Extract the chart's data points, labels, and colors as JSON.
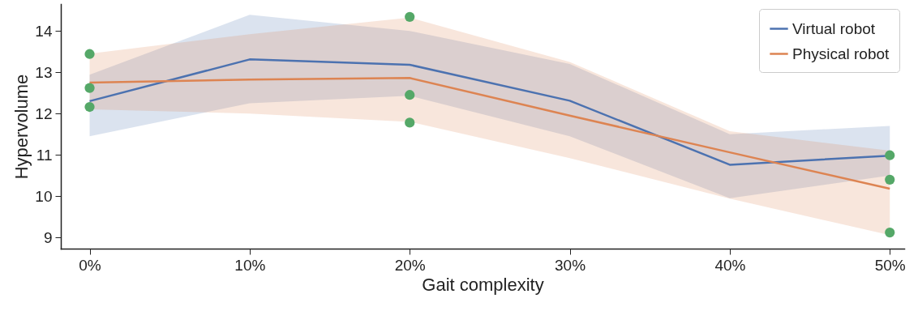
{
  "chart_data": {
    "type": "line",
    "xlabel": "Gait complexity",
    "ylabel": "Hypervolume",
    "x": [
      0,
      10,
      20,
      30,
      40,
      50
    ],
    "xlim": [
      -1.8,
      50.9
    ],
    "xticks": [
      {
        "value": 0,
        "label": "0%"
      },
      {
        "value": 10,
        "label": "10%"
      },
      {
        "value": 20,
        "label": "20%"
      },
      {
        "value": 30,
        "label": "30%"
      },
      {
        "value": 40,
        "label": "40%"
      },
      {
        "value": 50,
        "label": "50%"
      }
    ],
    "ylim": [
      8.73,
      14.65
    ],
    "yticks": [
      9,
      10,
      11,
      12,
      13,
      14
    ],
    "legend": "top right",
    "grid": false,
    "marker": "none",
    "line_style": "solid",
    "series": [
      {
        "name": "Virtual robot",
        "color": "#4c72b0",
        "values": [
          12.3,
          13.31,
          13.18,
          12.31,
          10.76,
          10.98
        ],
        "lower": [
          11.45,
          12.25,
          12.43,
          11.45,
          9.95,
          10.5
        ],
        "upper": [
          12.94,
          14.39,
          14.0,
          13.2,
          11.5,
          11.7
        ]
      },
      {
        "name": "Physical robot",
        "color": "#dd8452",
        "values": [
          12.75,
          12.82,
          12.86,
          11.95,
          11.06,
          10.18
        ],
        "lower": [
          12.1,
          12.0,
          11.8,
          10.92,
          9.94,
          9.06
        ],
        "upper": [
          13.45,
          13.92,
          14.32,
          13.25,
          11.57,
          11.1
        ]
      },
      {
        "type": "scatter",
        "color": "#55a868",
        "marker": "circle",
        "x": [
          0,
          0,
          0,
          20,
          20,
          20,
          50,
          50,
          50
        ],
        "values": [
          13.44,
          12.62,
          12.16,
          14.34,
          12.45,
          11.78,
          10.99,
          10.4,
          9.12
        ]
      }
    ]
  }
}
